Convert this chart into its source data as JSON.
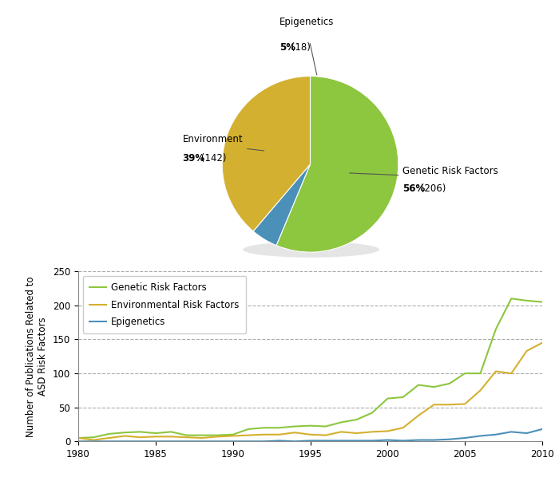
{
  "pie": {
    "labels": [
      "Genetic Risk Factors",
      "Epigenetics",
      "Environment"
    ],
    "values": [
      206,
      18,
      142
    ],
    "percentages": [
      56,
      5,
      39
    ],
    "colors": [
      "#8DC63F",
      "#4A90B8",
      "#D4B030"
    ],
    "shadow_color": "#AAAAAA"
  },
  "line": {
    "years": [
      1980,
      1981,
      1982,
      1983,
      1984,
      1985,
      1986,
      1987,
      1988,
      1989,
      1990,
      1991,
      1992,
      1993,
      1994,
      1995,
      1996,
      1997,
      1998,
      1999,
      2000,
      2001,
      2002,
      2003,
      2004,
      2005,
      2006,
      2007,
      2008,
      2009,
      2010
    ],
    "genetic": [
      5,
      6,
      11,
      13,
      14,
      12,
      14,
      9,
      9,
      9,
      10,
      18,
      20,
      20,
      22,
      23,
      22,
      28,
      32,
      42,
      63,
      65,
      83,
      80,
      85,
      100,
      100,
      165,
      210,
      207,
      205
    ],
    "environmental": [
      5,
      2,
      5,
      8,
      6,
      7,
      7,
      6,
      5,
      7,
      8,
      9,
      10,
      10,
      13,
      10,
      9,
      14,
      12,
      14,
      15,
      20,
      38,
      54,
      54,
      55,
      75,
      103,
      100,
      133,
      145
    ],
    "epigenetics": [
      0,
      0,
      0,
      0,
      0,
      0,
      0,
      0,
      0,
      0,
      0,
      0,
      0,
      1,
      0,
      1,
      1,
      1,
      1,
      1,
      2,
      1,
      2,
      2,
      3,
      5,
      8,
      10,
      14,
      12,
      18
    ],
    "genetic_color": "#8DC63F",
    "environmental_color": "#D4B030",
    "epigenetics_color": "#4A90B8",
    "ylim": [
      0,
      250
    ],
    "yticks": [
      0,
      50,
      100,
      150,
      200,
      250
    ],
    "ylabel": "Number of Publications Related to\nASD Risk Factors",
    "legend_labels": [
      "Genetic Risk Factors",
      "Environmental Risk Factors",
      "Epigenetics"
    ]
  },
  "background_color": "#FFFFFF"
}
